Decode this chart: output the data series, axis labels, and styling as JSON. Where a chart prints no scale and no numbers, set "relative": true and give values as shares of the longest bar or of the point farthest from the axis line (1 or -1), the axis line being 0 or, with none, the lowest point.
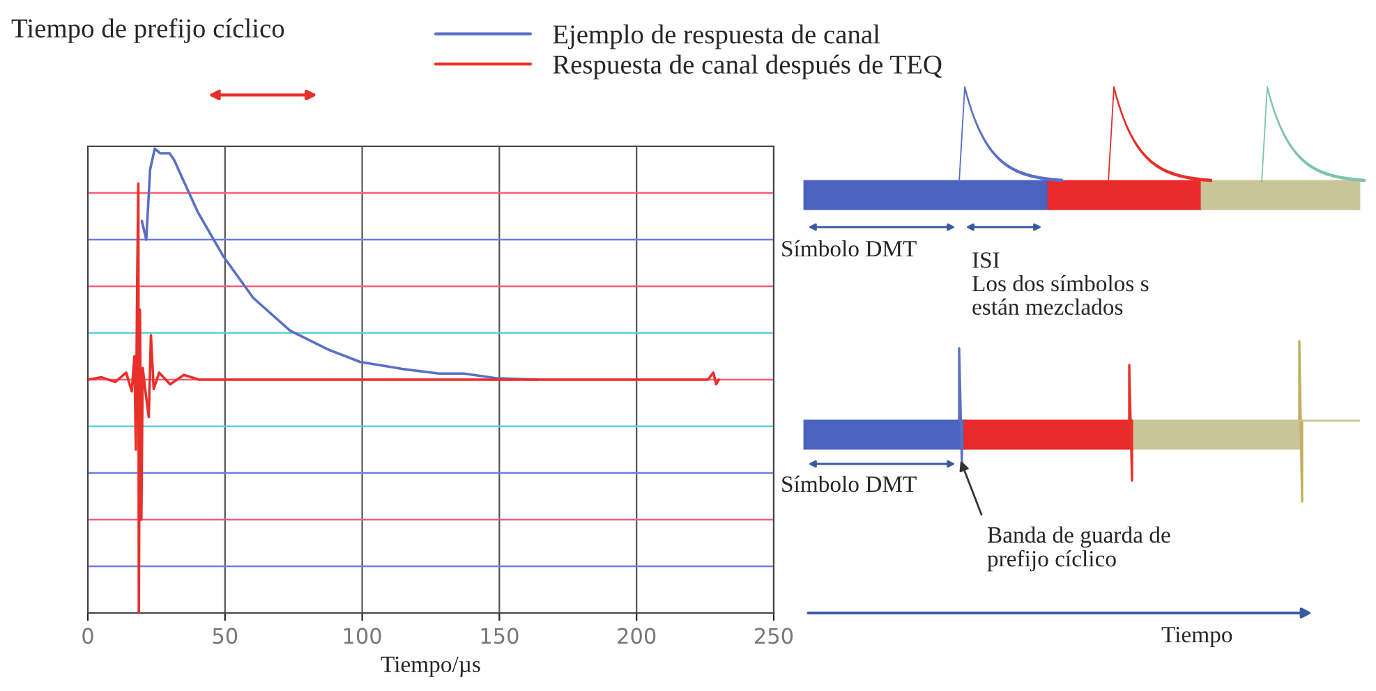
{
  "chart_data": [
    {
      "type": "line",
      "relative": true,
      "xlabel": "Tiempo/µs",
      "xlim": [
        0,
        250
      ],
      "xticks": [
        0,
        50,
        100,
        150,
        200,
        250
      ],
      "grid": "x",
      "legend": "top",
      "ref_lines": [
        {
          "axis": "y",
          "value": 0.8,
          "color": "#ff5a7a"
        },
        {
          "axis": "y",
          "value": 0.6,
          "color": "#6a7cf0"
        },
        {
          "axis": "y",
          "value": 0.4,
          "color": "#ff5a7a"
        },
        {
          "axis": "y",
          "value": 0.2,
          "color": "#5ad0e0"
        },
        {
          "axis": "y",
          "value": 0,
          "color": "#ff5a7a"
        },
        {
          "axis": "y",
          "value": -0.2,
          "color": "#5ad0e0"
        },
        {
          "axis": "y",
          "value": -0.4,
          "color": "#6a7cf0"
        },
        {
          "axis": "y",
          "value": -0.6,
          "color": "#ff5a7a"
        },
        {
          "axis": "y",
          "value": -0.8,
          "color": "#6a7cf0"
        }
      ],
      "tick_labels": "x",
      "annotations": [
        "Tiempo de prefijo cíclico"
      ],
      "series": [
        {
          "name": "Ejemplo de respuesta de canal",
          "color": "#5a6fc4",
          "x": [
            19.7,
            21.3,
            22.7,
            24.4,
            26.4,
            29.8,
            31.5,
            40,
            49.3,
            60.3,
            73.7,
            87.4,
            99.2,
            114.5,
            128,
            137,
            149,
            164
          ],
          "values": [
            0.68,
            0.6,
            0.9,
            0.99,
            0.97,
            0.97,
            0.94,
            0.72,
            0.53,
            0.35,
            0.21,
            0.13,
            0.076,
            0.046,
            0.026,
            0.026,
            0.006,
            0
          ]
        },
        {
          "name": "Respuesta de canal después de TEQ",
          "color": "#e8302a",
          "x": [
            0,
            5,
            10,
            14,
            16,
            17,
            17.5,
            18,
            18.4,
            18.6,
            19,
            19.5,
            20,
            21,
            22.2,
            23,
            24,
            26,
            30,
            35,
            40.5,
            226,
            228,
            229,
            230
          ],
          "values": [
            0,
            0.01,
            -0.01,
            0.03,
            -0.05,
            0.1,
            -0.3,
            0.42,
            0.84,
            -1,
            0.3,
            -0.6,
            0.05,
            -0.05,
            -0.16,
            0.19,
            -0.04,
            0.03,
            -0.02,
            0.02,
            0,
            0,
            0.03,
            -0.02,
            0
          ]
        }
      ]
    },
    {
      "type": "other",
      "annotations": [
        "Símbolo DMT",
        "ISI\nLos dos símbolos s\nestán mezclados",
        "Símbolo DMT",
        "Banda de guarda de\nprefijo cíclico",
        "Tiempo"
      ]
    }
  ]
}
